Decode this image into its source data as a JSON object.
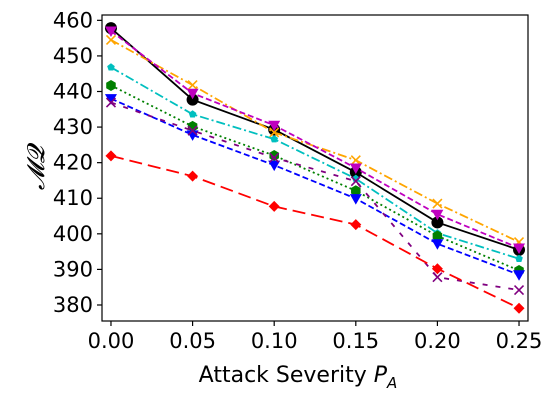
{
  "chart_data": {
    "type": "line",
    "xlabel": "Attack Severity",
    "xlabel_sub": "A",
    "xlabel_var": "P",
    "ylabel": "𝓜𝓠",
    "x": [
      0.0,
      0.05,
      0.1,
      0.15,
      0.2,
      0.25
    ],
    "x_tick_labels": [
      "0.00",
      "0.05",
      "0.10",
      "0.15",
      "0.20",
      "0.25"
    ],
    "y_ticks": [
      380,
      390,
      400,
      410,
      420,
      430,
      440,
      450,
      460
    ],
    "xlim": [
      -0.0055,
      0.2555
    ],
    "ylim": [
      375.5,
      461.5
    ],
    "grid": false,
    "series": [
      {
        "color": "#000000",
        "line": "solid",
        "marker": "circle",
        "values": [
          457.8,
          437.7,
          429.3,
          417.3,
          403.2,
          395.5
        ]
      },
      {
        "color": "#FFA500",
        "line": "dashdot",
        "marker": "x",
        "values": [
          454.5,
          441.8,
          428.5,
          420.7,
          408.5,
          397.7
        ]
      },
      {
        "color": "#BF00BF",
        "line": "dashed",
        "marker": "triangle-down",
        "values": [
          457.0,
          439.5,
          430.5,
          418.5,
          405.5,
          396.0
        ]
      },
      {
        "color": "#00BFBF",
        "line": "dashdot",
        "marker": "pentagon",
        "values": [
          446.8,
          433.6,
          426.6,
          415.5,
          400.2,
          393.0
        ]
      },
      {
        "color": "#008000",
        "line": "dotted",
        "marker": "hexagon",
        "values": [
          441.7,
          430.2,
          422.0,
          412.1,
          399.4,
          389.7
        ]
      },
      {
        "color": "#0000FF",
        "line": "dashed",
        "marker": "triangle-down",
        "values": [
          438.0,
          427.8,
          419.3,
          409.9,
          397.2,
          388.5
        ]
      },
      {
        "color": "#800080",
        "line": "loose-dashed",
        "marker": "x",
        "values": [
          436.9,
          429.0,
          421.4,
          414.8,
          387.8,
          384.2
        ]
      },
      {
        "color": "#FF0000",
        "line": "long-dashed",
        "marker": "diamond",
        "values": [
          421.9,
          416.2,
          407.7,
          402.6,
          390.2,
          379.1
        ]
      }
    ]
  }
}
